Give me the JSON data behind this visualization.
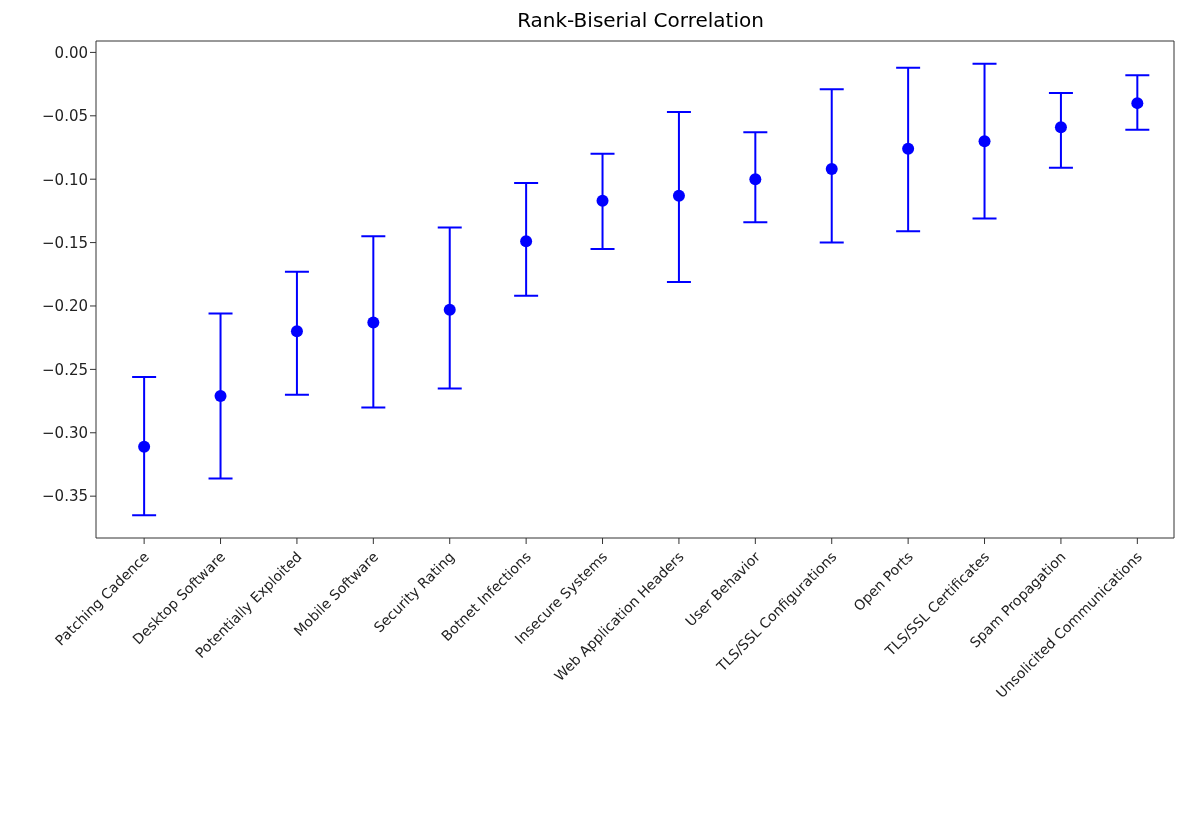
{
  "chart_data": {
    "type": "scatter",
    "title": "Rank-Biserial Correlation",
    "categories": [
      "Patching Cadence",
      "Desktop Software",
      "Potentially Exploited",
      "Mobile Software",
      "Security Rating",
      "Botnet Infections",
      "Insecure Systems",
      "Web Application Headers",
      "User Behavior",
      "TLS/SSL Configurations",
      "Open Ports",
      "TLS/SSL Certificates",
      "Spam Propagation",
      "Unsolicited Communications"
    ],
    "values": [
      -0.311,
      -0.271,
      -0.22,
      -0.213,
      -0.203,
      -0.149,
      -0.117,
      -0.113,
      -0.1,
      -0.092,
      -0.076,
      -0.07,
      -0.059,
      -0.04
    ],
    "errors": [
      [
        -0.365,
        -0.256
      ],
      [
        -0.336,
        -0.206
      ],
      [
        -0.27,
        -0.173
      ],
      [
        -0.28,
        -0.145
      ],
      [
        -0.265,
        -0.138
      ],
      [
        -0.192,
        -0.103
      ],
      [
        -0.155,
        -0.08
      ],
      [
        -0.181,
        -0.047
      ],
      [
        -0.134,
        -0.063
      ],
      [
        -0.15,
        -0.029
      ],
      [
        -0.141,
        -0.012
      ],
      [
        -0.131,
        -0.009
      ],
      [
        -0.091,
        -0.032
      ],
      [
        -0.061,
        -0.018
      ]
    ],
    "color": "#0000ff",
    "marker": "circle",
    "grid": false,
    "legend": false,
    "ylim": [
      -0.383,
      0.009
    ],
    "yticks": [
      {
        "value": 0,
        "label": "0.00"
      },
      {
        "value": -0.05,
        "label": "−0.05"
      },
      {
        "value": -0.1,
        "label": "−0.10"
      },
      {
        "value": -0.15,
        "label": "−0.15"
      },
      {
        "value": -0.2,
        "label": "−0.20"
      },
      {
        "value": -0.25,
        "label": "−0.25"
      },
      {
        "value": -0.3,
        "label": "−0.30"
      },
      {
        "value": -0.35,
        "label": "−0.35"
      }
    ]
  }
}
